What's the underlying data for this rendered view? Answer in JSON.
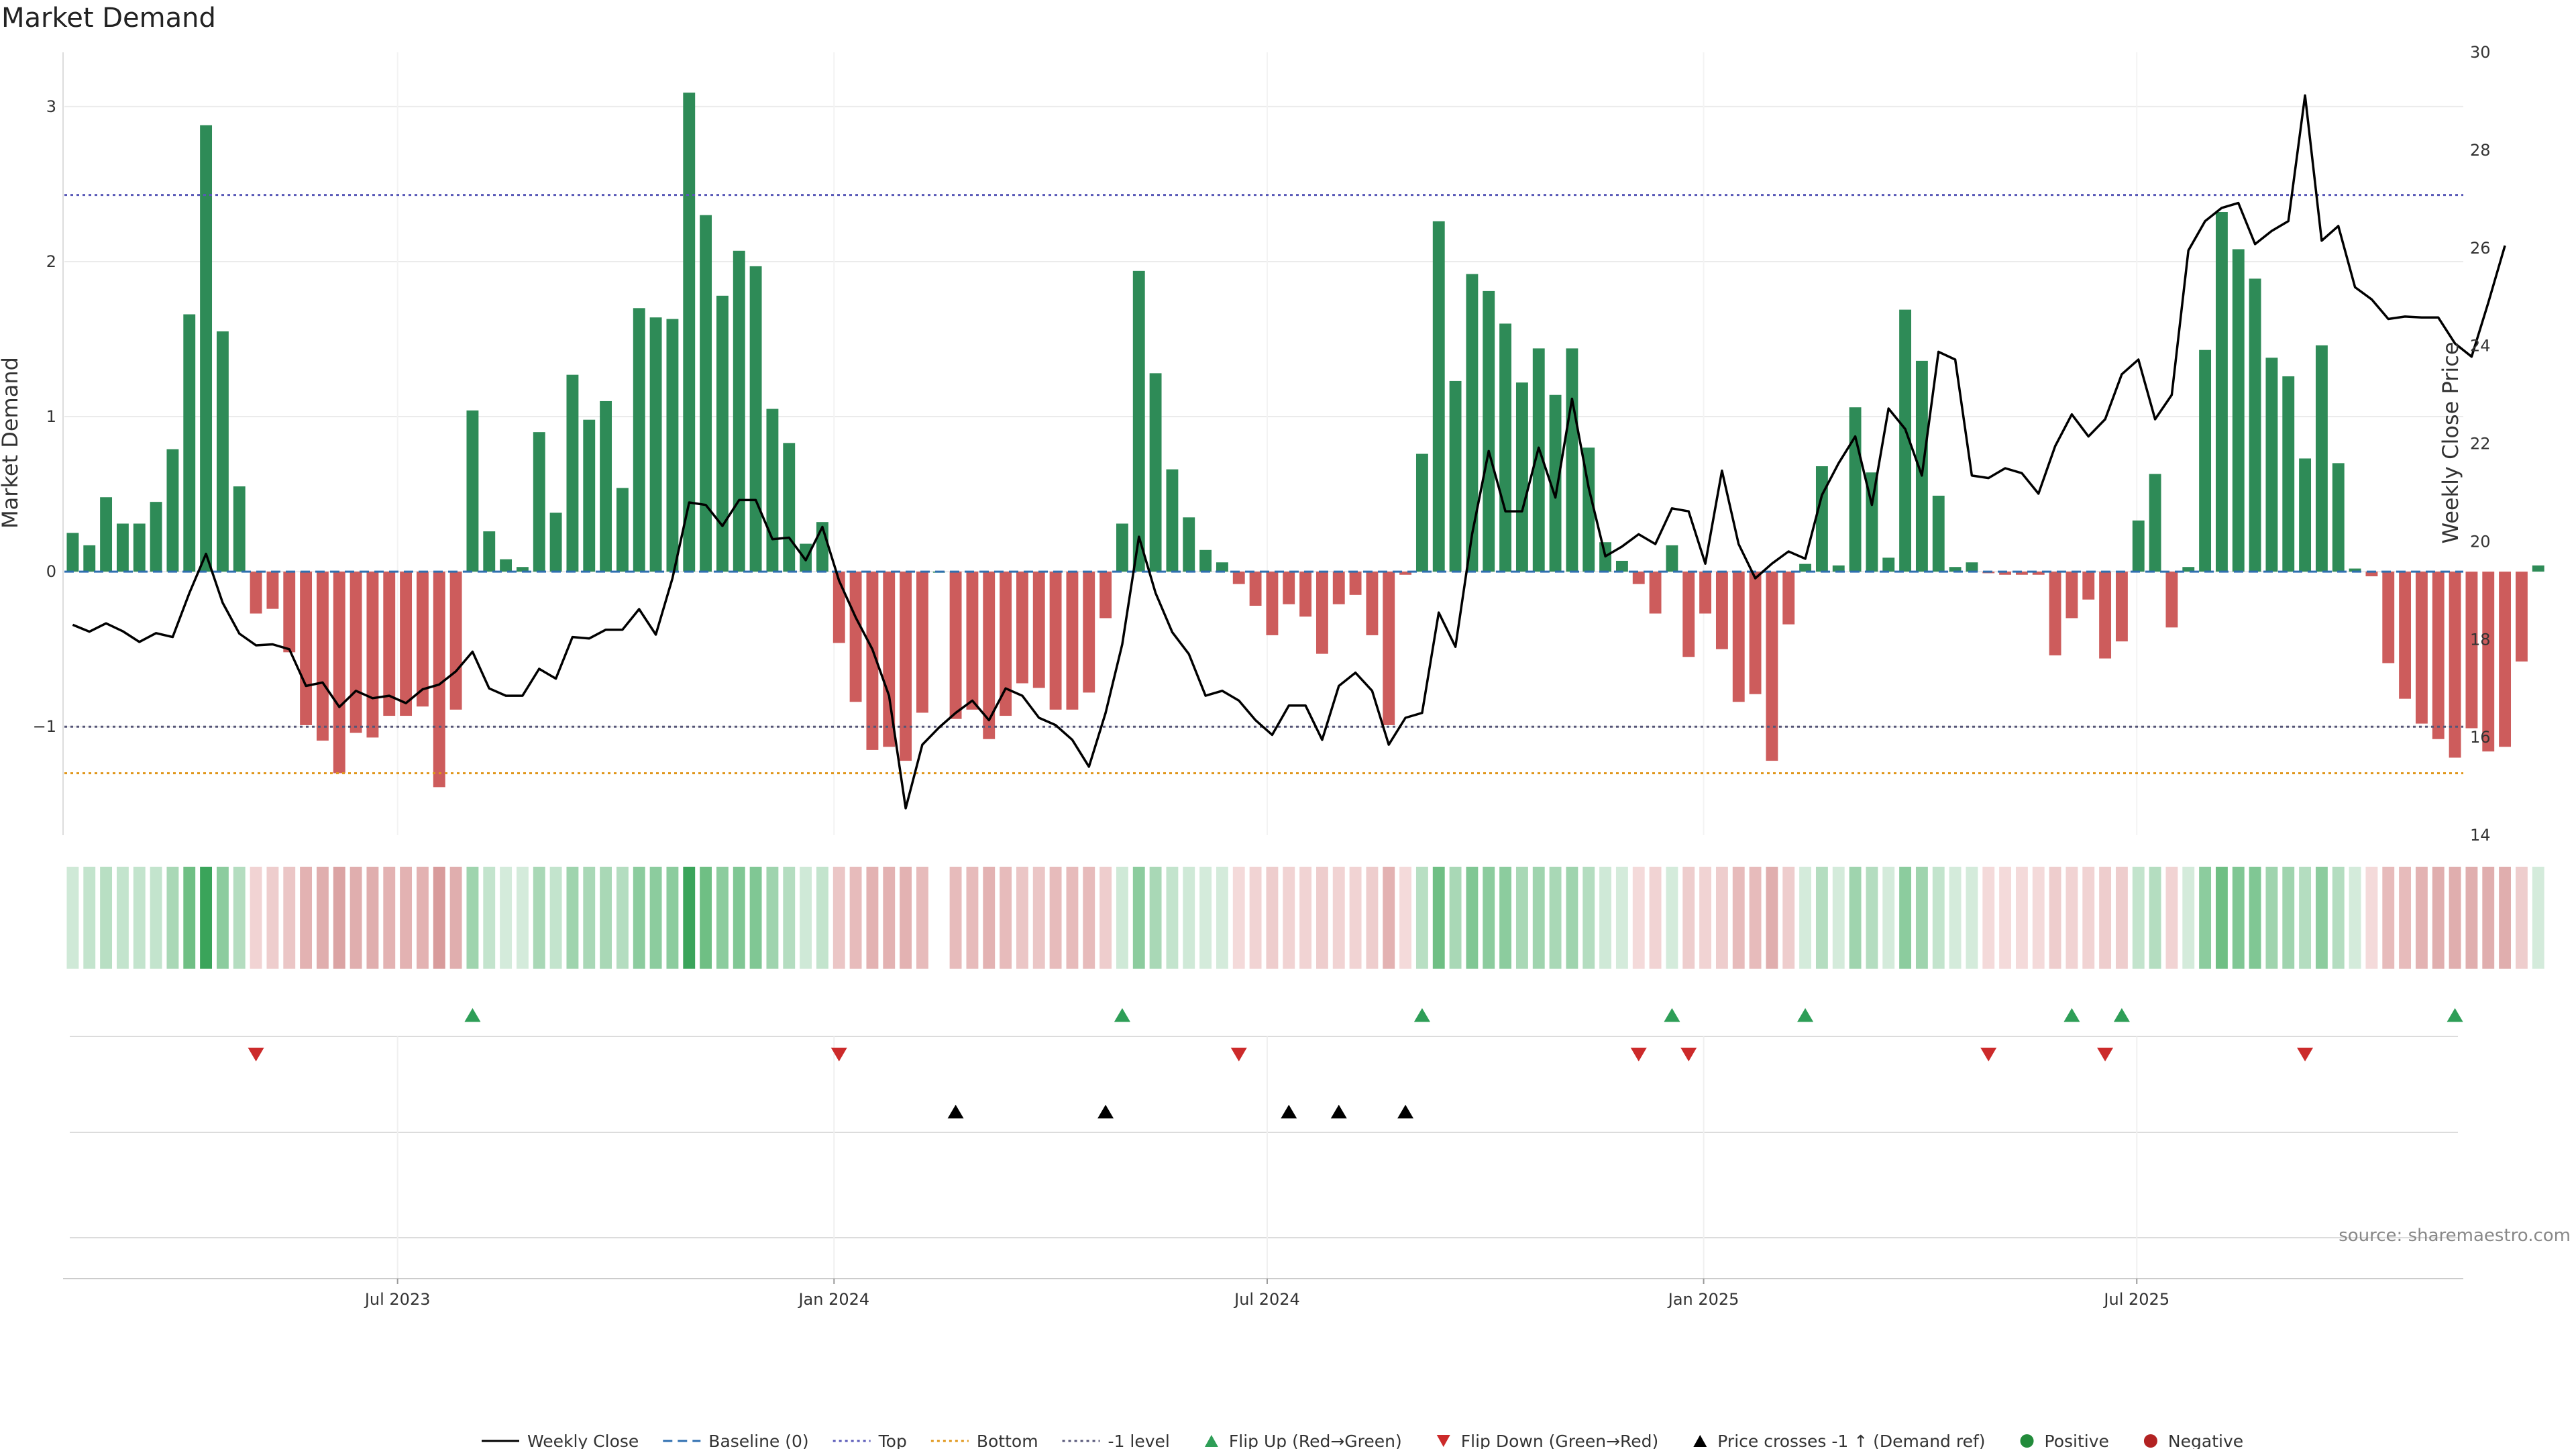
{
  "chart_data": {
    "type": "bar",
    "title": "Market Demand",
    "ylabel": "Market Demand",
    "y2label": "Weekly Close Price",
    "ylim": [
      -1.7,
      3.35
    ],
    "y2lim": [
      14,
      30
    ],
    "yticks": [
      -1,
      0,
      1,
      2,
      3
    ],
    "y2ticks": [
      14,
      16,
      18,
      20,
      22,
      24,
      26,
      28,
      30
    ],
    "xlim": [
      0,
      144
    ],
    "xticks": [
      {
        "label": "Jul 2023",
        "x": 20
      },
      {
        "label": "Jan 2024",
        "x": 46.2
      },
      {
        "label": "Jul 2024",
        "x": 72.2
      },
      {
        "label": "Jan 2025",
        "x": 98.4
      },
      {
        "label": "Jul 2025",
        "x": 124.4
      }
    ],
    "reference_lines": [
      {
        "name": "Baseline (0)",
        "value": 0,
        "color": "#2f6fb0",
        "dash": "dash"
      },
      {
        "name": "Top",
        "value": 2.43,
        "color": "#5959b8",
        "dash": "dot"
      },
      {
        "name": "Bottom",
        "value": -1.3,
        "color": "#e0961a",
        "dash": "dot"
      },
      {
        "name": "-1 level",
        "value": -1,
        "color": "#555577",
        "dash": "dot"
      }
    ],
    "demand": [
      0.25,
      0.17,
      0.48,
      0.31,
      0.31,
      0.45,
      0.79,
      1.66,
      2.88,
      1.55,
      0.55,
      -0.27,
      -0.24,
      -0.52,
      -0.99,
      -1.09,
      -1.3,
      -1.04,
      -1.07,
      -0.93,
      -0.93,
      -0.87,
      -1.39,
      -0.89,
      1.04,
      0.26,
      0.08,
      0.03,
      0.9,
      0.38,
      1.27,
      0.98,
      1.1,
      0.54,
      1.7,
      1.64,
      1.63,
      3.09,
      2.3,
      1.78,
      2.07,
      1.97,
      1.05,
      0.83,
      0.18,
      0.32,
      -0.46,
      -0.84,
      -1.15,
      -1.13,
      -1.22,
      -0.91,
      0.0,
      -0.95,
      -0.89,
      -1.08,
      -0.93,
      -0.72,
      -0.75,
      -0.89,
      -0.89,
      -0.78,
      -0.3,
      0.31,
      1.94,
      1.28,
      0.66,
      0.35,
      0.14,
      0.06,
      -0.08,
      -0.22,
      -0.41,
      -0.21,
      -0.29,
      -0.53,
      -0.21,
      -0.15,
      -0.41,
      -0.99,
      -0.02,
      0.76,
      2.26,
      1.23,
      1.92,
      1.81,
      1.6,
      1.22,
      1.44,
      1.14,
      1.44,
      0.8,
      0.19,
      0.07,
      -0.08,
      -0.27,
      0.17,
      -0.55,
      -0.27,
      -0.5,
      -0.84,
      -0.79,
      -1.22,
      -0.34,
      0.05,
      0.68,
      0.04,
      1.06,
      0.64,
      0.09,
      1.69,
      1.36,
      0.49,
      0.03,
      0.06,
      -0.01,
      -0.02,
      -0.02,
      -0.02,
      -0.54,
      -0.3,
      -0.18,
      -0.56,
      -0.45,
      0.33,
      0.63,
      -0.36,
      0.03,
      1.43,
      2.32,
      2.08,
      1.89,
      1.38,
      1.26,
      0.73,
      1.46,
      0.7,
      0.02,
      -0.03,
      -0.59,
      -0.82,
      -0.98,
      -1.08,
      -1.2,
      -1.01,
      -1.16,
      -1.13,
      -0.58,
      0.04
    ],
    "close": [
      18.3,
      18.16,
      18.33,
      18.17,
      17.95,
      18.13,
      18.05,
      18.95,
      19.75,
      18.75,
      18.12,
      17.88,
      17.9,
      17.8,
      17.05,
      17.12,
      16.62,
      16.95,
      16.8,
      16.85,
      16.7,
      16.98,
      17.08,
      17.35,
      17.75,
      17.0,
      16.85,
      16.85,
      17.4,
      17.2,
      18.05,
      18.02,
      18.2,
      18.2,
      18.62,
      18.1,
      19.25,
      20.8,
      20.75,
      20.32,
      20.85,
      20.85,
      20.05,
      20.08,
      19.62,
      20.3,
      19.2,
      18.45,
      17.8,
      16.85,
      14.55,
      15.85,
      16.2,
      16.5,
      16.75,
      16.35,
      17.0,
      16.85,
      16.4,
      16.25,
      15.95,
      15.4,
      16.5,
      17.9,
      20.1,
      18.95,
      18.15,
      17.7,
      16.85,
      16.95,
      16.75,
      16.35,
      16.05,
      16.65,
      16.65,
      15.95,
      17.05,
      17.32,
      16.95,
      15.85,
      16.4,
      16.5,
      18.55,
      17.85,
      20.15,
      21.85,
      20.62,
      20.62,
      21.92,
      20.9,
      22.92,
      21.1,
      19.7,
      19.9,
      20.15,
      19.95,
      20.68,
      20.62,
      19.55,
      21.45,
      19.95,
      19.25,
      19.55,
      19.8,
      19.65,
      20.95,
      21.6,
      22.15,
      20.75,
      22.72,
      22.3,
      21.35,
      23.88,
      23.72,
      21.35,
      21.3,
      21.5,
      21.4,
      20.98,
      21.95,
      22.6,
      22.15,
      22.5,
      23.42,
      23.72,
      22.5,
      23.0,
      25.95,
      26.55,
      26.82,
      26.92,
      26.08,
      26.35,
      26.55,
      29.12,
      26.15,
      26.45,
      25.2,
      24.95,
      24.55,
      24.6,
      24.58,
      24.58,
      24.05,
      23.78,
      24.88,
      26.05
    ],
    "flip_up": [
      24,
      63,
      81,
      96,
      104,
      120,
      123,
      143
    ],
    "flip_down": [
      11,
      46,
      70,
      94,
      97,
      115,
      122,
      134
    ],
    "price_crosses": [
      53,
      62,
      73,
      76,
      80
    ],
    "strip_colors": [
      "#cfe9d7",
      "#c3e4cd",
      "#b8dfc3",
      "#c3e4cd",
      "#c3e4cd",
      "#c3e4cd",
      "#a9d8b6",
      "#6fbf84",
      "#3aa45a",
      "#8ccc9e",
      "#b4ddc0",
      "#f1d3d3",
      "#eecdcd",
      "#ebc6c6",
      "#e3b2b2",
      "#e0aeae",
      "#dba3a3",
      "#e0aeae",
      "#e0aeae",
      "#e3b2b2",
      "#e3b2b2",
      "#e3b2b2",
      "#d89b9b",
      "#e0aeae",
      "#9fd4ae",
      "#c3e4cd",
      "#d4ebdb",
      "#d4ebdb",
      "#a9d8b6",
      "#c3e4cd",
      "#9fd4ae",
      "#a9d8b6",
      "#a9d8b6",
      "#b4ddc0",
      "#8ccc9e",
      "#8ccc9e",
      "#8ccc9e",
      "#3aa45a",
      "#6fbf84",
      "#8ccc9e",
      "#80c794",
      "#80c794",
      "#9fd4ae",
      "#b4ddc0",
      "#cfe9d7",
      "#c3e4cd",
      "#ebc6c6",
      "#e7bbbb",
      "#e3b2b2",
      "#e3b2b2",
      "#e3b2b2",
      "#e7bbbb",
      null,
      "#e7bbbb",
      "#e7bbbb",
      "#e3b2b2",
      "#e7bbbb",
      "#ebc6c6",
      "#ebc6c6",
      "#e7bbbb",
      "#e7bbbb",
      "#e7bbbb",
      "#eecdcd",
      "#cfe9d7",
      "#8ccc9e",
      "#a9d8b6",
      "#c3e4cd",
      "#cfe9d7",
      "#d4ebdb",
      "#d4ebdb",
      "#f4dada",
      "#f1d3d3",
      "#eecdcd",
      "#f1d3d3",
      "#f1d3d3",
      "#eecdcd",
      "#f1d3d3",
      "#f1d3d3",
      "#eecdcd",
      "#e3b2b2",
      "#f4dada",
      "#b8dfc3",
      "#6fbf84",
      "#a9d8b6",
      "#80c794",
      "#8ccc9e",
      "#8ccc9e",
      "#a9d8b6",
      "#9fd4ae",
      "#a9d8b6",
      "#9fd4ae",
      "#b4ddc0",
      "#cfe9d7",
      "#d4ebdb",
      "#f4dada",
      "#f1d3d3",
      "#d4ebdb",
      "#eecdcd",
      "#f1d3d3",
      "#eecdcd",
      "#e7bbbb",
      "#e7bbbb",
      "#e0aeae",
      "#eecdcd",
      "#d4ebdb",
      "#b4ddc0",
      "#d4ebdb",
      "#9fd4ae",
      "#b4ddc0",
      "#d4ebdb",
      "#8ccc9e",
      "#9fd4ae",
      "#c3e4cd",
      "#d4ebdb",
      "#d4ebdb",
      "#f4dada",
      "#f4dada",
      "#f4dada",
      "#f4dada",
      "#eecdcd",
      "#f1d3d3",
      "#f1d3d3",
      "#eecdcd",
      "#eecdcd",
      "#c3e4cd",
      "#b4ddc0",
      "#f1d3d3",
      "#d4ebdb",
      "#8ccc9e",
      "#6fbf84",
      "#80c794",
      "#80c794",
      "#9fd4ae",
      "#9fd4ae",
      "#b4ddc0",
      "#8ccc9e",
      "#b4ddc0",
      "#d4ebdb",
      "#f4dada",
      "#e7bbbb",
      "#e7bbbb",
      "#e3b2b2",
      "#e0aeae",
      "#e0aeae",
      "#e0aeae",
      "#e0aeae",
      "#e0aeae",
      "#eecdcd",
      "#d4ebdb"
    ]
  },
  "source": "source: sharemaestro.com",
  "legend": [
    {
      "label": "Weekly Close",
      "kind": "line",
      "color": "#000000"
    },
    {
      "label": "Baseline (0)",
      "kind": "dash",
      "color": "#2f6fb0"
    },
    {
      "label": "Top",
      "kind": "dot",
      "color": "#5959b8"
    },
    {
      "label": "Bottom",
      "kind": "dot",
      "color": "#e0961a"
    },
    {
      "label": "-1 level",
      "kind": "dot",
      "color": "#555577"
    },
    {
      "label": "Flip Up (Red→Green)",
      "kind": "tri-up",
      "color": "#2e9e57"
    },
    {
      "label": "Flip Down (Green→Red)",
      "kind": "tri-down",
      "color": "#cc2a2a"
    },
    {
      "label": "Price crosses -1 ↑ (Demand ref)",
      "kind": "tri-up",
      "color": "#000000"
    },
    {
      "label": "Positive",
      "kind": "dot-marker",
      "color": "#228b3b"
    },
    {
      "label": "Negative",
      "kind": "dot-marker",
      "color": "#b22222"
    }
  ],
  "colors": {
    "positive_bar": "#2e8b57",
    "negative_bar": "#cd5c5c",
    "close_line": "#000000",
    "grid": "#ebebeb"
  }
}
